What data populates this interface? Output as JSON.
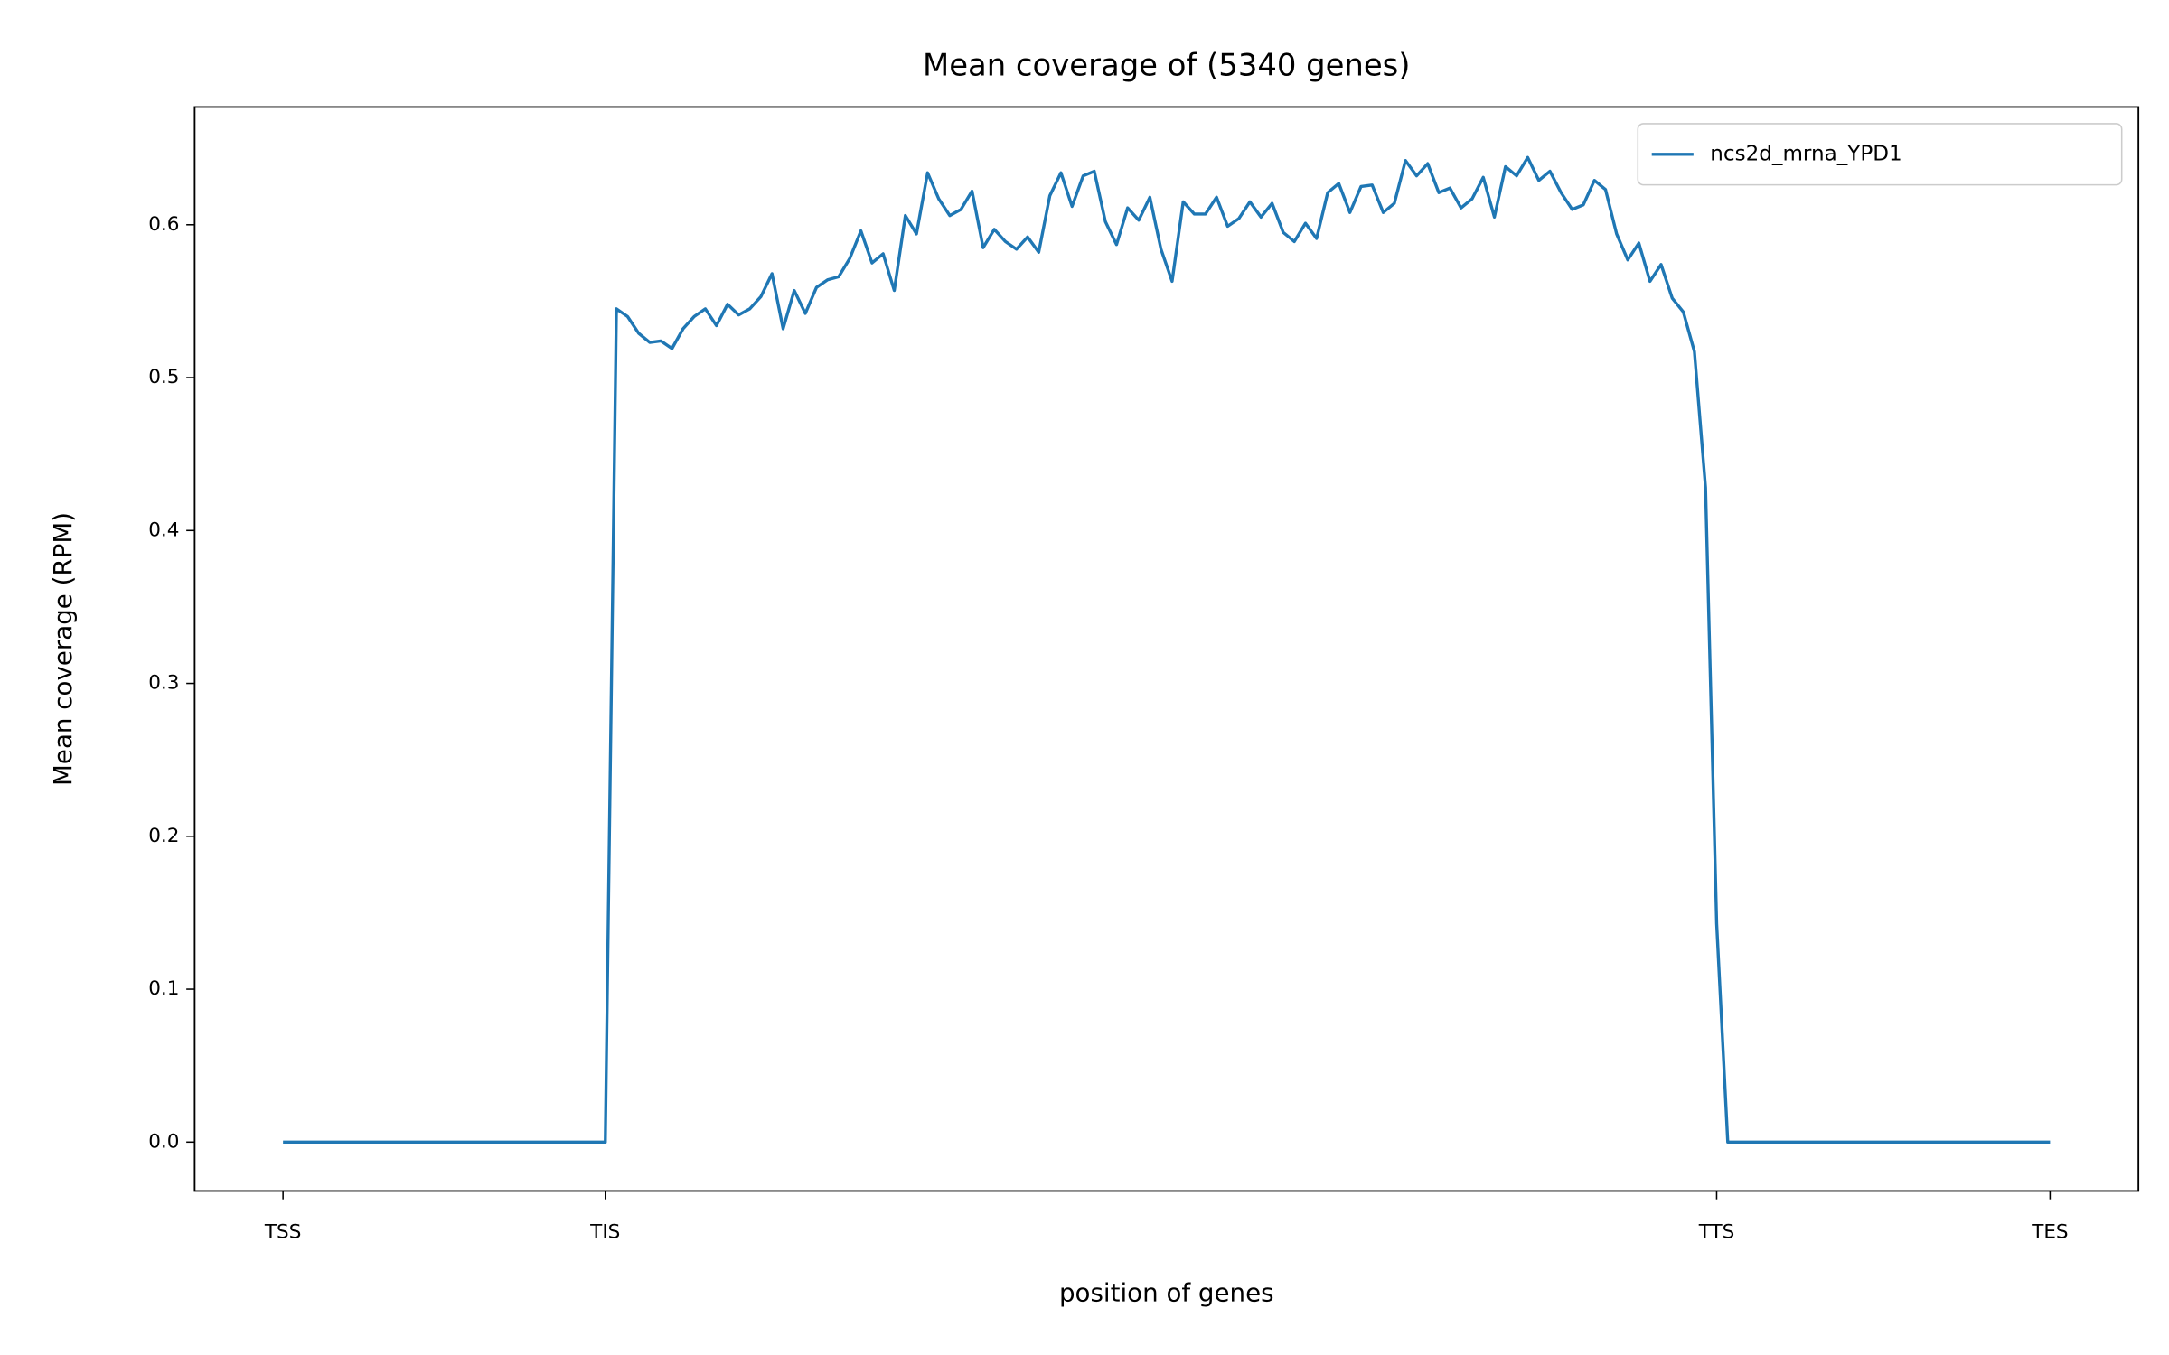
{
  "chart_data": {
    "type": "line",
    "title": "Mean coverage of (5340 genes)",
    "xlabel": "position of genes",
    "ylabel": "Mean coverage (RPM)",
    "x": [
      0,
      1,
      2,
      3,
      4,
      5,
      6,
      7,
      8,
      9,
      10,
      11,
      12,
      13,
      14,
      15,
      16,
      17,
      18,
      19,
      20,
      21,
      22,
      23,
      24,
      25,
      26,
      27,
      28,
      29,
      30,
      31,
      32,
      33,
      34,
      35,
      36,
      37,
      38,
      39,
      40,
      41,
      42,
      43,
      44,
      45,
      46,
      47,
      48,
      49,
      50,
      51,
      52,
      53,
      54,
      55,
      56,
      57,
      58,
      59,
      60,
      61,
      62,
      63,
      64,
      65,
      66,
      67,
      68,
      69,
      70,
      71,
      72,
      73,
      74,
      75,
      76,
      77,
      78,
      79,
      80,
      81,
      82,
      83,
      84,
      85,
      86,
      87,
      88,
      89,
      90,
      91,
      92,
      93,
      94,
      95,
      96,
      97,
      98,
      99,
      100,
      101,
      102,
      103,
      104,
      105,
      106,
      107,
      108,
      109,
      110,
      111,
      112,
      113,
      114,
      115,
      116,
      117,
      118,
      119,
      120,
      121,
      122,
      123,
      124,
      125,
      126,
      127,
      128,
      129,
      130,
      131,
      132,
      133,
      134,
      135,
      136,
      137,
      138,
      139,
      140,
      141,
      142,
      143,
      144,
      145,
      146,
      147,
      148,
      149,
      150,
      151,
      152,
      153,
      154,
      155,
      156,
      157,
      158,
      159
    ],
    "series": [
      {
        "name": "ncs2d_mrna_YPD1",
        "color": "#1f77b4",
        "values": [
          0,
          0,
          0,
          0,
          0,
          0,
          0,
          0,
          0,
          0,
          0,
          0,
          0,
          0,
          0,
          0,
          0,
          0,
          0,
          0,
          0,
          0,
          0,
          0,
          0,
          0,
          0,
          0,
          0,
          0,
          0.545,
          0.54,
          0.529,
          0.523,
          0.524,
          0.519,
          0.532,
          0.54,
          0.545,
          0.534,
          0.548,
          0.541,
          0.545,
          0.553,
          0.568,
          0.532,
          0.557,
          0.542,
          0.559,
          0.564,
          0.566,
          0.578,
          0.596,
          0.575,
          0.581,
          0.557,
          0.606,
          0.594,
          0.634,
          0.617,
          0.606,
          0.61,
          0.622,
          0.585,
          0.597,
          0.589,
          0.584,
          0.592,
          0.582,
          0.619,
          0.634,
          0.612,
          0.632,
          0.635,
          0.602,
          0.587,
          0.611,
          0.603,
          0.618,
          0.584,
          0.563,
          0.615,
          0.607,
          0.607,
          0.618,
          0.599,
          0.604,
          0.615,
          0.605,
          0.614,
          0.595,
          0.589,
          0.601,
          0.591,
          0.621,
          0.627,
          0.608,
          0.625,
          0.626,
          0.608,
          0.614,
          0.642,
          0.632,
          0.64,
          0.621,
          0.624,
          0.611,
          0.617,
          0.631,
          0.605,
          0.638,
          0.632,
          0.644,
          0.629,
          0.635,
          0.621,
          0.61,
          0.613,
          0.629,
          0.623,
          0.594,
          0.577,
          0.588,
          0.563,
          0.574,
          0.552,
          0.543,
          0.517,
          0.428,
          0.143,
          0,
          0,
          0,
          0,
          0,
          0,
          0,
          0,
          0,
          0,
          0,
          0,
          0,
          0,
          0,
          0,
          0,
          0,
          0,
          0,
          0,
          0,
          0,
          0,
          0,
          0,
          0,
          0,
          0,
          0
        ]
      }
    ],
    "xlim": [
      -7.95,
      166.95
    ],
    "xticks": [
      {
        "value": 0,
        "label": "TSS"
      },
      {
        "value": 29,
        "label": "TIS"
      },
      {
        "value": 129,
        "label": "TTS"
      },
      {
        "value": 159,
        "label": "TES"
      }
    ],
    "ylim": [
      -0.032,
      0.677
    ],
    "yticks": [
      {
        "value": 0,
        "label": "0.0"
      },
      0.1,
      0.2,
      0.3,
      0.4,
      0.5,
      0.6
    ],
    "legend": "upper right"
  }
}
